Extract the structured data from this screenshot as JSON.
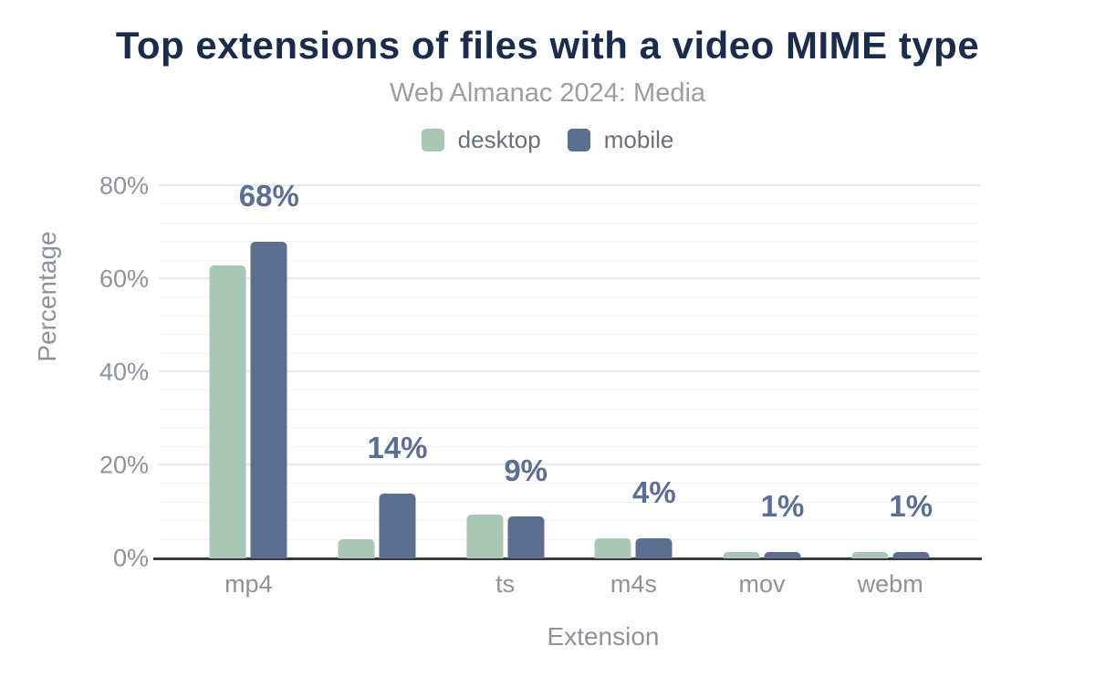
{
  "chart_data": {
    "type": "bar",
    "title": "Top extensions of files with a video MIME type",
    "subtitle": "Web Almanac 2024: Media",
    "categories": [
      "mp4",
      "",
      "ts",
      "m4s",
      "mov",
      "webm"
    ],
    "series": [
      {
        "name": "desktop",
        "color": "#a9c7b4",
        "values": [
          63,
          4.2,
          9.4,
          4.4,
          1.3,
          1.3
        ]
      },
      {
        "name": "mobile",
        "color": "#5d6f8e",
        "values": [
          68,
          14,
          9,
          4.3,
          1.3,
          1.3
        ]
      }
    ],
    "data_labels": {
      "series": "mobile",
      "values": [
        "68%",
        "14%",
        "9%",
        "4%",
        "1%",
        "1%"
      ]
    },
    "xlabel": "Extension",
    "ylabel": "Percentage",
    "ylim": [
      0,
      80
    ],
    "yticks": {
      "values": [
        0,
        20,
        40,
        60,
        80
      ],
      "labels": [
        "0%",
        "20%",
        "40%",
        "60%",
        "80%"
      ]
    },
    "grid": {
      "major_step": 20,
      "minor_step": 4
    },
    "legend_position": "top"
  },
  "colors": {
    "background": "#ffffff",
    "title": "#1a2b4c",
    "subtitle": "#9c9ea0",
    "axis_text": "#8e939a",
    "legend_text": "#6b7077",
    "data_label": "#5b6e93",
    "axis_line": "#37393c",
    "grid_major": "#e9e9e9",
    "grid_minor": "#f5f5f5"
  }
}
